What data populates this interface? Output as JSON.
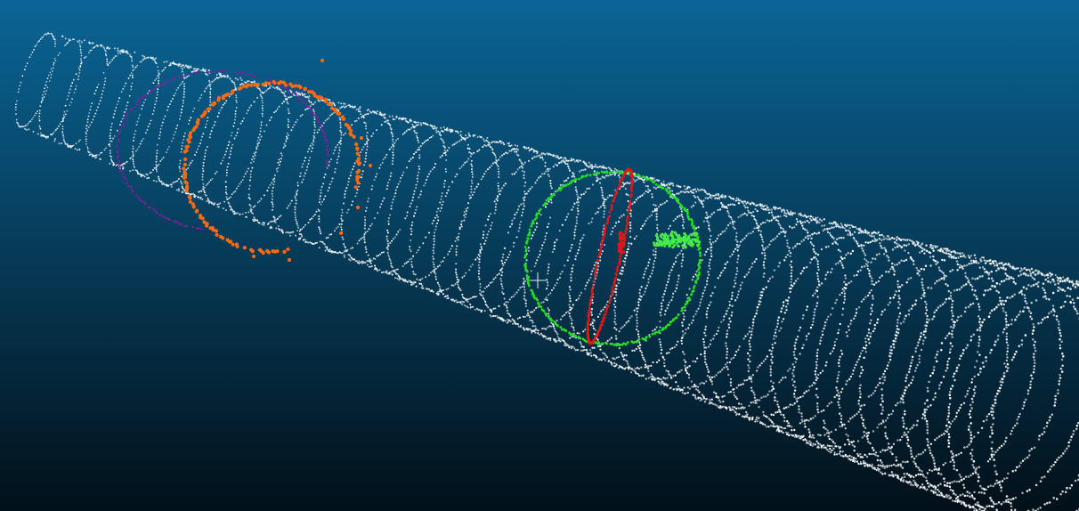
{
  "viewer": {
    "background": {
      "top": "#0a6596",
      "bottom": "#021019"
    },
    "cursor_icon": "crosshair-icon",
    "point_clouds": [
      {
        "name": "tunnel-scan",
        "color": "#ffffff"
      },
      {
        "name": "purple-ring",
        "color": "#8b1aa3"
      },
      {
        "name": "orange-ring",
        "color": "#ff6a10"
      },
      {
        "name": "green-ring",
        "color": "#22e022"
      },
      {
        "name": "red-ring",
        "color": "#e01818"
      },
      {
        "name": "green-cluster",
        "color": "#44ee44"
      }
    ]
  }
}
